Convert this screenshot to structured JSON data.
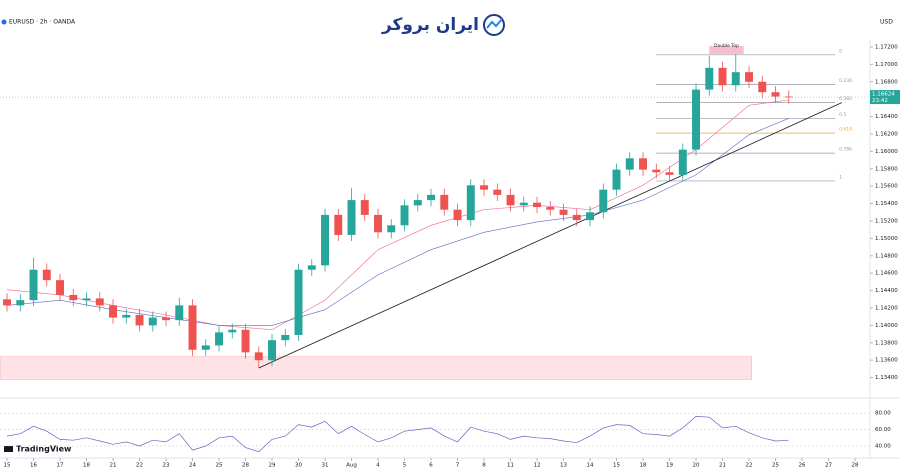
{
  "chart_data": {
    "type": "candlestick",
    "symbol": "EURUSD · 2h · OANDA",
    "currency": "USD",
    "brand": "ایران بروکر",
    "footer": "TradingView",
    "countdown": "23:42",
    "up_color": "#26a69a",
    "down_color": "#ef5350",
    "grid": false,
    "xlim": [
      -0.53,
      65.13
    ],
    "xticks": [
      {
        "value": 0,
        "label": "15"
      },
      {
        "value": 2,
        "label": "16"
      },
      {
        "value": 4,
        "label": "17"
      },
      {
        "value": 6,
        "label": "18"
      },
      {
        "value": 8,
        "label": "21"
      },
      {
        "value": 10,
        "label": "22"
      },
      {
        "value": 12,
        "label": "23"
      },
      {
        "value": 14,
        "label": "24"
      },
      {
        "value": 16,
        "label": "25"
      },
      {
        "value": 18,
        "label": "28"
      },
      {
        "value": 20,
        "label": "29"
      },
      {
        "value": 22,
        "label": "30"
      },
      {
        "value": 24,
        "label": "31"
      },
      {
        "value": 26,
        "label": "Aug"
      },
      {
        "value": 28,
        "label": "4"
      },
      {
        "value": 30,
        "label": "5"
      },
      {
        "value": 32,
        "label": "6"
      },
      {
        "value": 34,
        "label": "7"
      },
      {
        "value": 36,
        "label": "8"
      },
      {
        "value": 38,
        "label": "11"
      },
      {
        "value": 40,
        "label": "12"
      },
      {
        "value": 42,
        "label": "13"
      },
      {
        "value": 44,
        "label": "14"
      },
      {
        "value": 46,
        "label": "15"
      },
      {
        "value": 48,
        "label": "18"
      },
      {
        "value": 50,
        "label": "19"
      },
      {
        "value": 52,
        "label": "20"
      },
      {
        "value": 54,
        "label": "21"
      },
      {
        "value": 56,
        "label": "22"
      },
      {
        "value": 58,
        "label": "25"
      },
      {
        "value": 60,
        "label": "26"
      },
      {
        "value": 62,
        "label": "27"
      },
      {
        "value": 64,
        "label": "28"
      }
    ],
    "ylim": [
      1.132,
      1.1728
    ],
    "yticks": [
      {
        "value": 1.134,
        "label": "1.13400"
      },
      {
        "value": 1.136,
        "label": "1.13600"
      },
      {
        "value": 1.138,
        "label": "1.13800"
      },
      {
        "value": 1.14,
        "label": "1.14000"
      },
      {
        "value": 1.142,
        "label": "1.14200"
      },
      {
        "value": 1.144,
        "label": "1.14400"
      },
      {
        "value": 1.146,
        "label": "1.14600"
      },
      {
        "value": 1.148,
        "label": "1.14800"
      },
      {
        "value": 1.15,
        "label": "1.15000"
      },
      {
        "value": 1.152,
        "label": "1.15200"
      },
      {
        "value": 1.154,
        "label": "1.15400"
      },
      {
        "value": 1.156,
        "label": "1.15600"
      },
      {
        "value": 1.158,
        "label": "1.15800"
      },
      {
        "value": 1.16,
        "label": "1.16000"
      },
      {
        "value": 1.162,
        "label": "1.16200"
      },
      {
        "value": 1.164,
        "label": "1.16400"
      },
      {
        "value": 1.168,
        "label": "1.16800"
      },
      {
        "value": 1.17,
        "label": "1.17000"
      },
      {
        "value": 1.172,
        "label": "1.17200"
      }
    ],
    "candles": {
      "open": [
        1.143,
        1.1423,
        1.1429,
        1.1464,
        1.1452,
        1.1435,
        1.1429,
        1.1431,
        1.1423,
        1.1409,
        1.1412,
        1.14,
        1.1409,
        1.1406,
        1.1423,
        1.1372,
        1.1377,
        1.1392,
        1.1395,
        1.1369,
        1.136,
        1.1383,
        1.1389,
        1.1464,
        1.1469,
        1.1527,
        1.1504,
        1.1544,
        1.1527,
        1.1507,
        1.1515,
        1.1538,
        1.1544,
        1.155,
        1.1533,
        1.1521,
        1.1561,
        1.1556,
        1.155,
        1.1538,
        1.1541,
        1.1536,
        1.1533,
        1.1527,
        1.1521,
        1.153,
        1.1556,
        1.1579,
        1.1592,
        1.1579,
        1.1576,
        1.1573,
        1.1602,
        1.1671,
        1.1696,
        1.1676,
        1.1691,
        1.168,
        1.1668,
        1.1663
      ],
      "high": [
        1.1437,
        1.1436,
        1.1478,
        1.1471,
        1.1459,
        1.1442,
        1.1438,
        1.1438,
        1.143,
        1.1419,
        1.1419,
        1.1416,
        1.1416,
        1.1432,
        1.143,
        1.1384,
        1.1399,
        1.1402,
        1.1402,
        1.1376,
        1.139,
        1.1396,
        1.1471,
        1.1476,
        1.1534,
        1.1534,
        1.1558,
        1.1551,
        1.1534,
        1.1522,
        1.1545,
        1.1551,
        1.1557,
        1.1557,
        1.154,
        1.1568,
        1.1568,
        1.1563,
        1.1557,
        1.1548,
        1.1548,
        1.1543,
        1.154,
        1.1534,
        1.1537,
        1.1563,
        1.1586,
        1.1599,
        1.1599,
        1.1586,
        1.1583,
        1.1609,
        1.1678,
        1.171,
        1.1703,
        1.1712,
        1.1698,
        1.1687,
        1.1675,
        1.167
      ],
      "low": [
        1.1416,
        1.1416,
        1.1422,
        1.1445,
        1.1428,
        1.1422,
        1.1422,
        1.1416,
        1.1402,
        1.1402,
        1.1393,
        1.1393,
        1.1399,
        1.1399,
        1.1365,
        1.1365,
        1.137,
        1.1385,
        1.1362,
        1.1351,
        1.1353,
        1.1376,
        1.1382,
        1.1457,
        1.1462,
        1.1497,
        1.1497,
        1.152,
        1.15,
        1.15,
        1.1508,
        1.1531,
        1.1537,
        1.1526,
        1.1514,
        1.1514,
        1.1549,
        1.1543,
        1.1531,
        1.1531,
        1.1529,
        1.1526,
        1.152,
        1.1514,
        1.1514,
        1.1523,
        1.1549,
        1.1572,
        1.1572,
        1.1569,
        1.1566,
        1.1566,
        1.1595,
        1.1664,
        1.1669,
        1.1669,
        1.1673,
        1.1661,
        1.1656,
        1.1655
      ],
      "close": [
        1.1423,
        1.1429,
        1.1464,
        1.1452,
        1.1435,
        1.1429,
        1.1431,
        1.1423,
        1.1409,
        1.1412,
        1.14,
        1.1409,
        1.1406,
        1.1423,
        1.1372,
        1.1377,
        1.1392,
        1.1395,
        1.1369,
        1.136,
        1.1383,
        1.1389,
        1.1464,
        1.1469,
        1.1527,
        1.1504,
        1.1544,
        1.1527,
        1.1507,
        1.1515,
        1.1538,
        1.1544,
        1.155,
        1.1533,
        1.1521,
        1.1561,
        1.1556,
        1.155,
        1.1538,
        1.1541,
        1.1536,
        1.1533,
        1.1527,
        1.1521,
        1.153,
        1.1556,
        1.1579,
        1.1592,
        1.1579,
        1.1576,
        1.1573,
        1.1602,
        1.1671,
        1.1696,
        1.1676,
        1.1691,
        1.168,
        1.1668,
        1.1663,
        1.16624
      ]
    },
    "ma": [
      {
        "color": "#f06292",
        "x": [
          0,
          4,
          8,
          12,
          16,
          20,
          24,
          28,
          32,
          36,
          40,
          44,
          48,
          52,
          56,
          59
        ],
        "values": [
          1.1441,
          1.1435,
          1.1423,
          1.1412,
          1.14,
          1.1395,
          1.1429,
          1.1487,
          1.1515,
          1.1533,
          1.1538,
          1.1533,
          1.1561,
          1.1602,
          1.1653,
          1.1659
        ]
      },
      {
        "color": "#5c6bc0",
        "x": [
          0,
          4,
          8,
          12,
          16,
          20,
          24,
          28,
          32,
          36,
          40,
          44,
          48,
          52,
          56,
          59
        ],
        "values": [
          1.1423,
          1.1429,
          1.1418,
          1.1409,
          1.14,
          1.14,
          1.1418,
          1.1458,
          1.1487,
          1.1507,
          1.1519,
          1.1527,
          1.1544,
          1.1573,
          1.1619,
          1.1638
        ]
      }
    ],
    "trendline": {
      "color": "#131722",
      "index": [
        19,
        63
      ],
      "price": [
        1.1351,
        1.1656
      ]
    },
    "support_zone": {
      "color": "#fde3e5",
      "index": [
        -0.53,
        56.2
      ],
      "price": [
        1.1338,
        1.1364
      ]
    },
    "double_top": {
      "text": "Double Top",
      "color": "#f8bbd0",
      "index": [
        53,
        55.6
      ],
      "price": [
        1.1712,
        1.1721
      ]
    },
    "fib": {
      "index": [
        49,
        62.5
      ],
      "levels": [
        {
          "ratio": 0,
          "price": 1.1711,
          "color": "#9598a1"
        },
        {
          "ratio": 0.236,
          "price": 1.1677,
          "color": "#9598a1"
        },
        {
          "ratio": 0.382,
          "price": 1.1656,
          "color": "#9598a1"
        },
        {
          "ratio": 0.5,
          "price": 1.1638,
          "color": "#9598a1"
        },
        {
          "ratio": 0.618,
          "price": 1.1621,
          "color": "#f5a623"
        },
        {
          "ratio": 0.786,
          "price": 1.1598,
          "color": "#9598a1"
        },
        {
          "ratio": 1,
          "price": 1.1566,
          "color": "#9598a1"
        }
      ]
    },
    "oscillator": {
      "color": "#7e57c2",
      "ylim": [
        29,
        96
      ],
      "yticks": [
        {
          "value": 80,
          "label": "80.00"
        },
        {
          "value": 60,
          "label": "60.00"
        },
        {
          "value": 40,
          "label": "40.00"
        }
      ],
      "values": [
        52,
        55,
        64,
        58,
        48,
        47,
        50,
        46,
        42,
        45,
        40,
        47,
        45,
        55,
        35,
        40,
        50,
        52,
        38,
        33,
        48,
        52,
        66,
        63,
        70,
        55,
        64,
        54,
        45,
        50,
        58,
        60,
        62,
        52,
        45,
        63,
        58,
        55,
        48,
        52,
        50,
        49,
        46,
        44,
        52,
        62,
        66,
        65,
        55,
        54,
        52,
        62,
        76,
        75,
        62,
        64,
        56,
        50,
        46,
        47
      ]
    }
  }
}
